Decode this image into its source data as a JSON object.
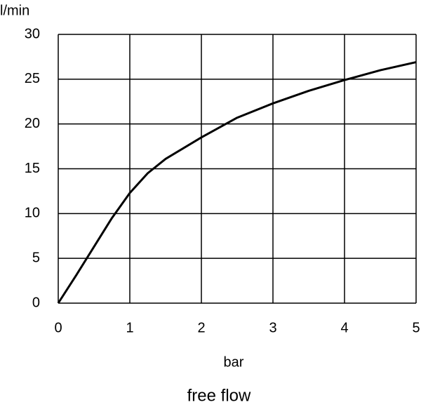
{
  "chart_data": {
    "type": "line",
    "title": "free flow",
    "x_label": "bar",
    "y_label": "l/min",
    "x": [
      0,
      0.25,
      0.5,
      0.75,
      1,
      1.25,
      1.5,
      2,
      2.5,
      3,
      3.5,
      4,
      4.5,
      5
    ],
    "values": [
      0,
      3.1,
      6.3,
      9.5,
      12.3,
      14.5,
      16.1,
      18.5,
      20.7,
      22.3,
      23.7,
      24.9,
      26.0,
      26.9
    ],
    "color": "#000000",
    "xlim": [
      0,
      5
    ],
    "xticks": [
      0,
      1,
      2,
      3,
      4,
      5
    ],
    "ylim": [
      0,
      30
    ],
    "yticks": [
      0,
      5,
      10,
      15,
      20,
      25,
      30
    ],
    "grid": true
  }
}
